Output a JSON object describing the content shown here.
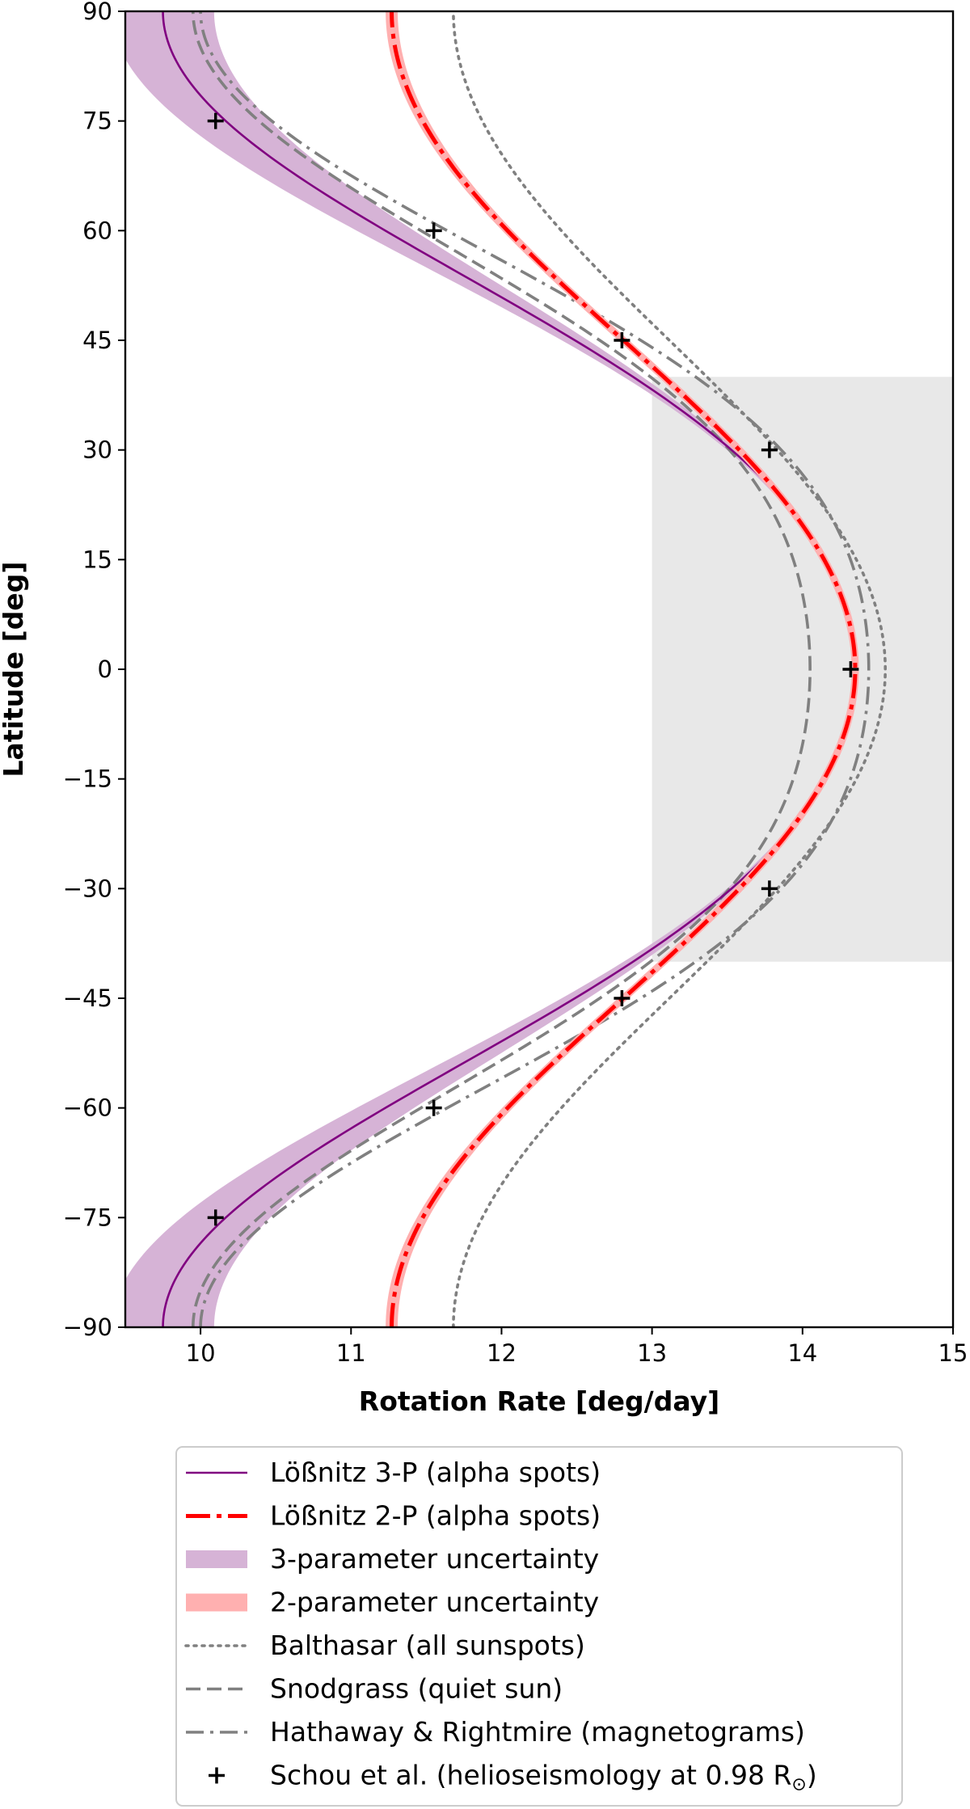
{
  "chart_data": {
    "type": "line",
    "title": "",
    "xlabel": "Rotation Rate [deg/day]",
    "ylabel": "Latitude [deg]",
    "xlim": [
      9.5,
      15
    ],
    "ylim": [
      -90,
      90
    ],
    "xticks": [
      10,
      11,
      12,
      13,
      14,
      15
    ],
    "yticks": [
      90,
      75,
      60,
      45,
      30,
      15,
      0,
      -15,
      -30,
      -45,
      -60,
      -75,
      -90
    ],
    "grid": false,
    "legend_position": "below plot",
    "shaded_region": {
      "x": [
        13,
        15
      ],
      "y": [
        -40,
        40
      ],
      "color": "#e8e8e8"
    },
    "colors": {
      "purple": "#800080",
      "purple_band": "#d6b3d6",
      "red": "#ff0000",
      "red_band": "#ffb0b0",
      "gray": "#808080",
      "black": "#000000"
    },
    "series": [
      {
        "name": "Lößnitz 3-P (alpha spots)",
        "model": {
          "A": 14.35,
          "B": -2.85,
          "C": -1.75
        },
        "style": "solid",
        "color": "#800080"
      },
      {
        "name": "Lößnitz 2-P (alpha spots)",
        "model": {
          "A": 14.35,
          "B": -3.08,
          "C": 0
        },
        "style": "dashdot",
        "color": "#ff0000"
      },
      {
        "name": "3-parameter uncertainty",
        "model_low": {
          "A": 14.33,
          "B": -2.8,
          "C": -2.12
        },
        "model_high": {
          "A": 14.37,
          "B": -2.9,
          "C": -1.38
        },
        "style": "band",
        "color": "#d6b3d6"
      },
      {
        "name": "2-parameter uncertainty",
        "model_low": {
          "A": 14.33,
          "B": -3.1,
          "C": 0
        },
        "model_high": {
          "A": 14.37,
          "B": -3.06,
          "C": 0
        },
        "style": "band",
        "color": "#ffb0b0"
      },
      {
        "name": "Balthasar (all sunspots)",
        "model": {
          "A": 14.55,
          "B": -2.87,
          "C": 0
        },
        "style": "dotted",
        "color": "#808080"
      },
      {
        "name": "Snodgrass (quiet sun)",
        "model": {
          "A": 14.05,
          "B": -1.49,
          "C": -2.61
        },
        "style": "dashed",
        "color": "#808080"
      },
      {
        "name": "Hathaway & Rightmire (magnetograms)",
        "model": {
          "A": 14.44,
          "B": -1.62,
          "C": -2.82
        },
        "style": "dashdot",
        "color": "#808080"
      },
      {
        "name": "Schou et al. (helioseismology at 0.98 R⊙)",
        "style": "marker",
        "marker": "+",
        "color": "#000000",
        "points": [
          {
            "x": 10.1,
            "y": 75
          },
          {
            "x": 11.55,
            "y": 60
          },
          {
            "x": 12.8,
            "y": 45
          },
          {
            "x": 13.78,
            "y": 30
          },
          {
            "x": 14.32,
            "y": 0
          },
          {
            "x": 13.78,
            "y": -30
          },
          {
            "x": 12.8,
            "y": -45
          },
          {
            "x": 11.55,
            "y": -60
          },
          {
            "x": 10.1,
            "y": -75
          }
        ]
      }
    ]
  }
}
